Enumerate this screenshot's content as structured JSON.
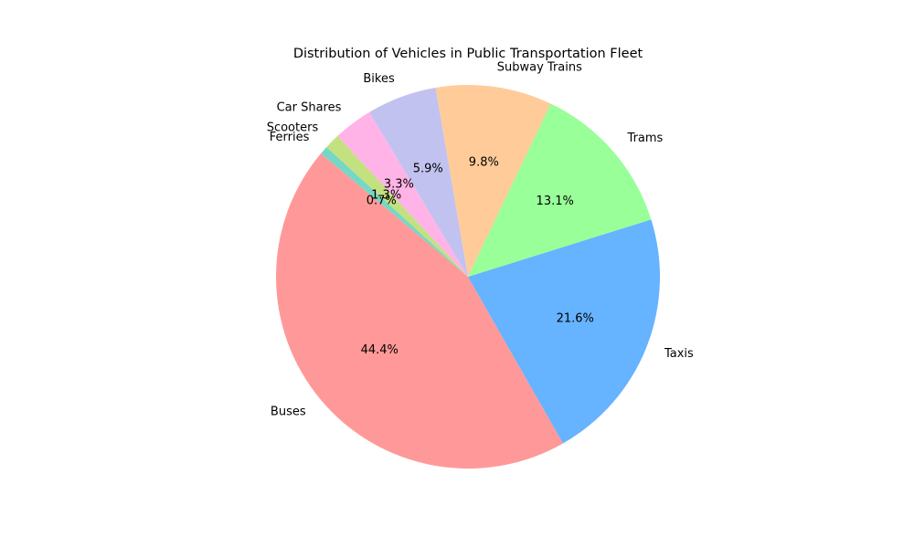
{
  "chart_data": {
    "type": "pie",
    "title": "Distribution of Vehicles in Public Transportation Fleet",
    "categories": [
      "Buses",
      "Taxis",
      "Trams",
      "Subway Trains",
      "Bikes",
      "Car Shares",
      "Scooters",
      "Ferries"
    ],
    "values": [
      44.4,
      21.6,
      13.1,
      9.8,
      5.9,
      3.3,
      1.3,
      0.7
    ],
    "percent_labels": [
      "44.4%",
      "21.6%",
      "13.1%",
      "9.8%",
      "5.9%",
      "3.3%",
      "1.3%",
      "0.7%"
    ],
    "colors": [
      "#ff9999",
      "#66b3ff",
      "#99ff99",
      "#ffcc99",
      "#c2c2f0",
      "#ffb3e6",
      "#c4e17f",
      "#76d7c4"
    ],
    "start_angle_deg": 140,
    "direction": "counterclockwise"
  }
}
